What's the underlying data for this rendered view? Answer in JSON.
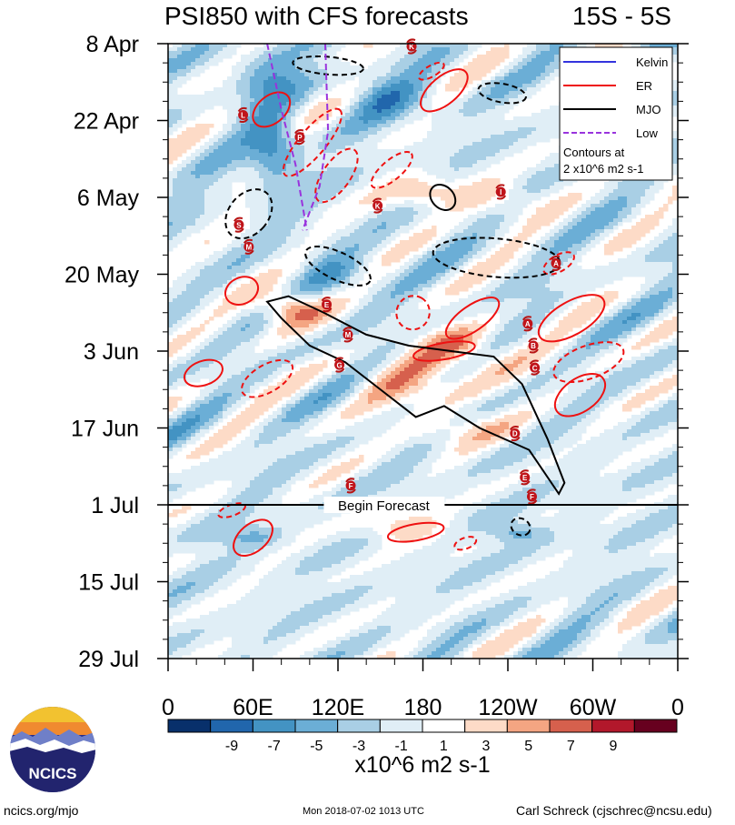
{
  "chart_data": {
    "type": "heatmap",
    "title": "PSI850 with CFS forecasts",
    "region": "15S - 5S",
    "x_ticks": [
      "0",
      "60E",
      "120E",
      "180",
      "120W",
      "60W",
      "0"
    ],
    "x_range_deg": [
      0,
      360
    ],
    "y_ticks": [
      "8 Apr",
      "22 Apr",
      "6 May",
      "20 May",
      "3 Jun",
      "17 Jun",
      "1 Jul",
      "15 Jul",
      "29 Jul"
    ],
    "y_range_days": [
      0,
      112
    ],
    "forecast_start_day": 84,
    "forecast_label": "Begin Forecast",
    "colorbar": {
      "levels": [
        -11,
        -9,
        -7,
        -5,
        -3,
        -1,
        1,
        3,
        5,
        7,
        9,
        11
      ],
      "tick_labels": [
        "-9",
        "-7",
        "-5",
        "-3",
        "-1",
        "1",
        "3",
        "5",
        "7",
        "9"
      ],
      "colors": [
        "#08306b",
        "#2166ac",
        "#4393c3",
        "#6baed6",
        "#a9cfe5",
        "#e0eef6",
        "#ffffff",
        "#fddbc7",
        "#f4a582",
        "#d6604d",
        "#b2182b",
        "#67001f"
      ],
      "units": "x10^6 m2 s-1"
    },
    "legend": {
      "position": "top-right",
      "entries": [
        {
          "name": "Kelvin",
          "color": "#3333dd",
          "style": "solid"
        },
        {
          "name": "ER",
          "color": "#ee1111",
          "style": "solid"
        },
        {
          "name": "MJO",
          "color": "#000000",
          "style": "solid"
        },
        {
          "name": "Low",
          "color": "#9933dd",
          "style": "dashed"
        }
      ],
      "contour_note_1": "Contours at",
      "contour_note_2": "2 x10^6 m2 s-1"
    },
    "tc_markers": [
      {
        "letter": "K",
        "lon": 172,
        "day": 0.5
      },
      {
        "letter": "L",
        "lon": 53,
        "day": 13
      },
      {
        "letter": "P",
        "lon": 93,
        "day": 17
      },
      {
        "letter": "I",
        "lon": 235,
        "day": 27
      },
      {
        "letter": "K",
        "lon": 148,
        "day": 29.5
      },
      {
        "letter": "S",
        "lon": 50,
        "day": 33
      },
      {
        "letter": "M",
        "lon": 57,
        "day": 37
      },
      {
        "letter": "A",
        "lon": 274,
        "day": 40
      },
      {
        "letter": "E",
        "lon": 112,
        "day": 47.5
      },
      {
        "letter": "A",
        "lon": 254,
        "day": 51
      },
      {
        "letter": "M",
        "lon": 127,
        "day": 53
      },
      {
        "letter": "B",
        "lon": 258,
        "day": 55
      },
      {
        "letter": "G",
        "lon": 121,
        "day": 58.5
      },
      {
        "letter": "C",
        "lon": 259,
        "day": 59
      },
      {
        "letter": "D",
        "lon": 245,
        "day": 71
      },
      {
        "letter": "E",
        "lon": 252,
        "day": 79
      },
      {
        "letter": "F",
        "lon": 129,
        "day": 80.5
      },
      {
        "letter": "F",
        "lon": 257,
        "day": 82.5
      }
    ]
  },
  "logo": {
    "text": "NCICS"
  },
  "footer": {
    "left": "ncics.org/mjo",
    "center": "Mon 2018-07-02 1013 UTC",
    "right": "Carl Schreck (cjschrec@ncsu.edu)"
  }
}
